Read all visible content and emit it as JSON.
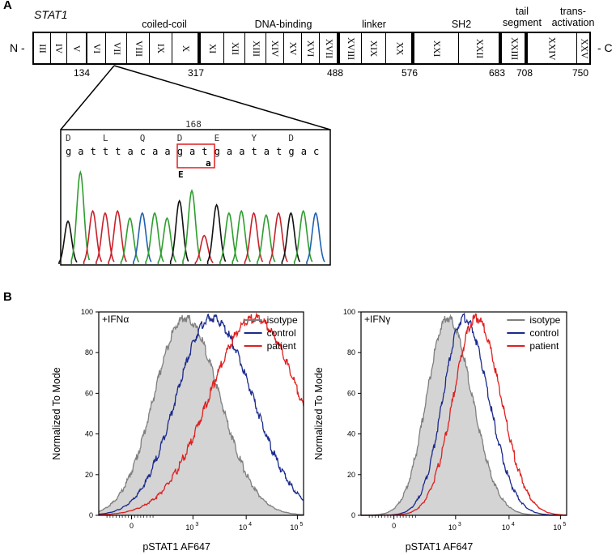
{
  "panel_a": {
    "letter": "A",
    "gene": "STAT1",
    "n_term": "N -",
    "c_term": "- C",
    "domains": [
      "coiled-coil",
      "DNA-binding",
      "linker",
      "SH2",
      "tail\nsegment",
      "trans-\nactivation"
    ],
    "exons": [
      "III",
      "IV",
      "V",
      "VI",
      "VII",
      "VIII",
      "IX",
      "X",
      "XI",
      "XII",
      "XIII",
      "XIV",
      "XV",
      "XVI",
      "XVII",
      "XVIII",
      "XIX",
      "XX",
      "XXI",
      "XXII",
      "XXIII",
      "XXIV",
      "XXV"
    ],
    "positions": [
      "134",
      "317",
      "488",
      "576",
      "683",
      "708",
      "750"
    ],
    "chromatogram": {
      "position_label": "168",
      "amino_acids": [
        "D",
        "L",
        "Q",
        "D",
        "E",
        "Y",
        "D"
      ],
      "bases": [
        "g",
        "a",
        "t",
        "t",
        "t",
        "a",
        "c",
        "a",
        "a",
        "g",
        "a",
        "t",
        "g",
        "a",
        "a",
        "t",
        "a",
        "t",
        "g",
        "a",
        "c"
      ],
      "mutant_aa": "E",
      "mutant_base": "a"
    }
  },
  "panel_b": {
    "letter": "B",
    "plots": [
      {
        "stim": "+IFNα",
        "ylabel": "Normalized To Mode",
        "xlabel": "pSTAT1 AF647",
        "legend": [
          "isotype",
          "control",
          "patient"
        ],
        "yticks": [
          "0",
          "20",
          "40",
          "60",
          "80",
          "100"
        ],
        "xticks": [
          "0",
          "10",
          "3",
          "10",
          "4",
          "10",
          "5"
        ]
      },
      {
        "stim": "+IFNγ",
        "ylabel": "Normalized To Mode",
        "xlabel": "pSTAT1 AF647",
        "legend": [
          "isotype",
          "control",
          "patient"
        ],
        "yticks": [
          "0",
          "20",
          "40",
          "60",
          "80",
          "100"
        ],
        "xticks": [
          "0",
          "10",
          "3",
          "10",
          "4",
          "10",
          "5"
        ]
      }
    ]
  },
  "colors": {
    "isotype": "#7f7f7f",
    "control": "#1b2a8c",
    "patient": "#e01f1f",
    "fill": "#d4d4d4"
  }
}
